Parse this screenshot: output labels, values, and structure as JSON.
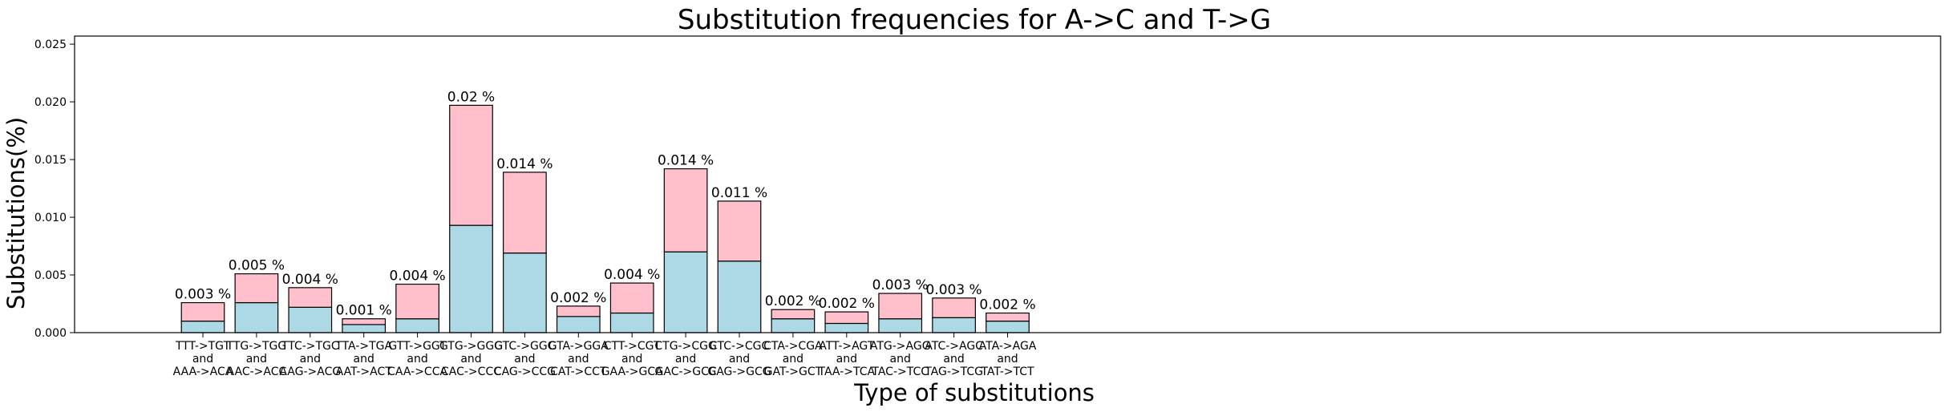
{
  "chart_data": {
    "type": "bar",
    "stacked": true,
    "title": "Substitution frequencies for A->C and T->G",
    "xlabel": "Type of substitutions",
    "ylabel": "Substitutions(%)",
    "ylim": [
      0,
      0.0257
    ],
    "yticks": [
      "0.000",
      "0.005",
      "0.010",
      "0.015",
      "0.020",
      "0.025"
    ],
    "ytick_values": [
      0,
      0.005,
      0.01,
      0.015,
      0.02,
      0.025
    ],
    "grid": false,
    "categories": [
      [
        "TTT->TGT",
        "and",
        "AAA->ACA"
      ],
      [
        "TTG->TGG",
        "and",
        "AAC->ACC"
      ],
      [
        "TTC->TGC",
        "and",
        "AAG->ACG"
      ],
      [
        "TTA->TGA",
        "and",
        "AAT->ACT"
      ],
      [
        "GTT->GGT",
        "and",
        "CAA->CCA"
      ],
      [
        "GTG->GGG",
        "and",
        "CAC->CCC"
      ],
      [
        "GTC->GGC",
        "and",
        "CAG->CCG"
      ],
      [
        "GTA->GGA",
        "and",
        "CAT->CCT"
      ],
      [
        "CTT->CGT",
        "and",
        "GAA->GCA"
      ],
      [
        "CTG->CGG",
        "and",
        "GAC->GCC"
      ],
      [
        "CTC->CGC",
        "and",
        "GAG->GCG"
      ],
      [
        "CTA->CGA",
        "and",
        "GAT->GCT"
      ],
      [
        "ATT->AGT",
        "and",
        "TAA->TCA"
      ],
      [
        "ATG->AGG",
        "and",
        "TAC->TCC"
      ],
      [
        "ATC->AGC",
        "and",
        "TAG->TCG"
      ],
      [
        "ATA->AGA",
        "and",
        "TAT->TCT"
      ]
    ],
    "series": [
      {
        "color": "#add8e6",
        "values": [
          0.001,
          0.0026,
          0.0022,
          0.0007,
          0.0012,
          0.0093,
          0.0069,
          0.0014,
          0.0017,
          0.007,
          0.0062,
          0.0012,
          0.0008,
          0.0012,
          0.0013,
          0.001
        ]
      },
      {
        "color": "#ffc0cb",
        "values": [
          0.0016,
          0.0025,
          0.0017,
          0.0005,
          0.003,
          0.0104,
          0.007,
          0.0009,
          0.0026,
          0.0072,
          0.0052,
          0.0008,
          0.001,
          0.0022,
          0.0017,
          0.0007
        ]
      }
    ],
    "data_labels": [
      "0.003 %",
      "0.005 %",
      "0.004 %",
      "0.001 %",
      "0.004 %",
      "0.02 %",
      "0.014 %",
      "0.002 %",
      "0.004 %",
      "0.014 %",
      "0.011 %",
      "0.002 %",
      "0.002 %",
      "0.003 %",
      "0.003 %",
      "0.002 %"
    ]
  }
}
